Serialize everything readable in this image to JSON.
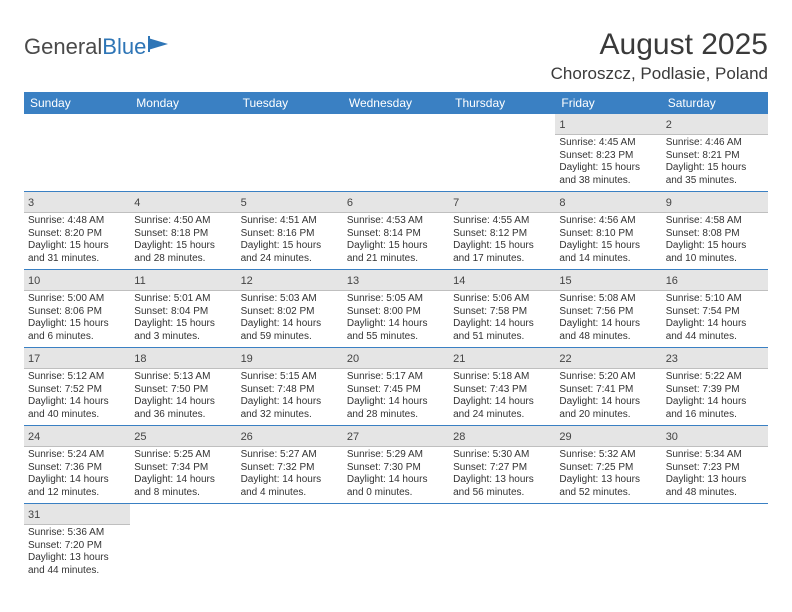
{
  "logo": {
    "part1": "General",
    "part2": "Blue"
  },
  "title": "August 2025",
  "location": "Choroszcz, Podlasie, Poland",
  "header_bg": "#3a80c3",
  "daynum_bg": "#e5e5e5",
  "border_color": "#3a80c3",
  "text_color": "#333333",
  "dayNames": [
    "Sunday",
    "Monday",
    "Tuesday",
    "Wednesday",
    "Thursday",
    "Friday",
    "Saturday"
  ],
  "weeks": [
    [
      null,
      null,
      null,
      null,
      null,
      {
        "n": "1",
        "sr": "4:45 AM",
        "ss": "8:23 PM",
        "dl": "15 hours and 38 minutes."
      },
      {
        "n": "2",
        "sr": "4:46 AM",
        "ss": "8:21 PM",
        "dl": "15 hours and 35 minutes."
      }
    ],
    [
      {
        "n": "3",
        "sr": "4:48 AM",
        "ss": "8:20 PM",
        "dl": "15 hours and 31 minutes."
      },
      {
        "n": "4",
        "sr": "4:50 AM",
        "ss": "8:18 PM",
        "dl": "15 hours and 28 minutes."
      },
      {
        "n": "5",
        "sr": "4:51 AM",
        "ss": "8:16 PM",
        "dl": "15 hours and 24 minutes."
      },
      {
        "n": "6",
        "sr": "4:53 AM",
        "ss": "8:14 PM",
        "dl": "15 hours and 21 minutes."
      },
      {
        "n": "7",
        "sr": "4:55 AM",
        "ss": "8:12 PM",
        "dl": "15 hours and 17 minutes."
      },
      {
        "n": "8",
        "sr": "4:56 AM",
        "ss": "8:10 PM",
        "dl": "15 hours and 14 minutes."
      },
      {
        "n": "9",
        "sr": "4:58 AM",
        "ss": "8:08 PM",
        "dl": "15 hours and 10 minutes."
      }
    ],
    [
      {
        "n": "10",
        "sr": "5:00 AM",
        "ss": "8:06 PM",
        "dl": "15 hours and 6 minutes."
      },
      {
        "n": "11",
        "sr": "5:01 AM",
        "ss": "8:04 PM",
        "dl": "15 hours and 3 minutes."
      },
      {
        "n": "12",
        "sr": "5:03 AM",
        "ss": "8:02 PM",
        "dl": "14 hours and 59 minutes."
      },
      {
        "n": "13",
        "sr": "5:05 AM",
        "ss": "8:00 PM",
        "dl": "14 hours and 55 minutes."
      },
      {
        "n": "14",
        "sr": "5:06 AM",
        "ss": "7:58 PM",
        "dl": "14 hours and 51 minutes."
      },
      {
        "n": "15",
        "sr": "5:08 AM",
        "ss": "7:56 PM",
        "dl": "14 hours and 48 minutes."
      },
      {
        "n": "16",
        "sr": "5:10 AM",
        "ss": "7:54 PM",
        "dl": "14 hours and 44 minutes."
      }
    ],
    [
      {
        "n": "17",
        "sr": "5:12 AM",
        "ss": "7:52 PM",
        "dl": "14 hours and 40 minutes."
      },
      {
        "n": "18",
        "sr": "5:13 AM",
        "ss": "7:50 PM",
        "dl": "14 hours and 36 minutes."
      },
      {
        "n": "19",
        "sr": "5:15 AM",
        "ss": "7:48 PM",
        "dl": "14 hours and 32 minutes."
      },
      {
        "n": "20",
        "sr": "5:17 AM",
        "ss": "7:45 PM",
        "dl": "14 hours and 28 minutes."
      },
      {
        "n": "21",
        "sr": "5:18 AM",
        "ss": "7:43 PM",
        "dl": "14 hours and 24 minutes."
      },
      {
        "n": "22",
        "sr": "5:20 AM",
        "ss": "7:41 PM",
        "dl": "14 hours and 20 minutes."
      },
      {
        "n": "23",
        "sr": "5:22 AM",
        "ss": "7:39 PM",
        "dl": "14 hours and 16 minutes."
      }
    ],
    [
      {
        "n": "24",
        "sr": "5:24 AM",
        "ss": "7:36 PM",
        "dl": "14 hours and 12 minutes."
      },
      {
        "n": "25",
        "sr": "5:25 AM",
        "ss": "7:34 PM",
        "dl": "14 hours and 8 minutes."
      },
      {
        "n": "26",
        "sr": "5:27 AM",
        "ss": "7:32 PM",
        "dl": "14 hours and 4 minutes."
      },
      {
        "n": "27",
        "sr": "5:29 AM",
        "ss": "7:30 PM",
        "dl": "14 hours and 0 minutes."
      },
      {
        "n": "28",
        "sr": "5:30 AM",
        "ss": "7:27 PM",
        "dl": "13 hours and 56 minutes."
      },
      {
        "n": "29",
        "sr": "5:32 AM",
        "ss": "7:25 PM",
        "dl": "13 hours and 52 minutes."
      },
      {
        "n": "30",
        "sr": "5:34 AM",
        "ss": "7:23 PM",
        "dl": "13 hours and 48 minutes."
      }
    ],
    [
      {
        "n": "31",
        "sr": "5:36 AM",
        "ss": "7:20 PM",
        "dl": "13 hours and 44 minutes."
      },
      null,
      null,
      null,
      null,
      null,
      null
    ]
  ],
  "labels": {
    "sunrise": "Sunrise:",
    "sunset": "Sunset:",
    "daylight": "Daylight:"
  }
}
